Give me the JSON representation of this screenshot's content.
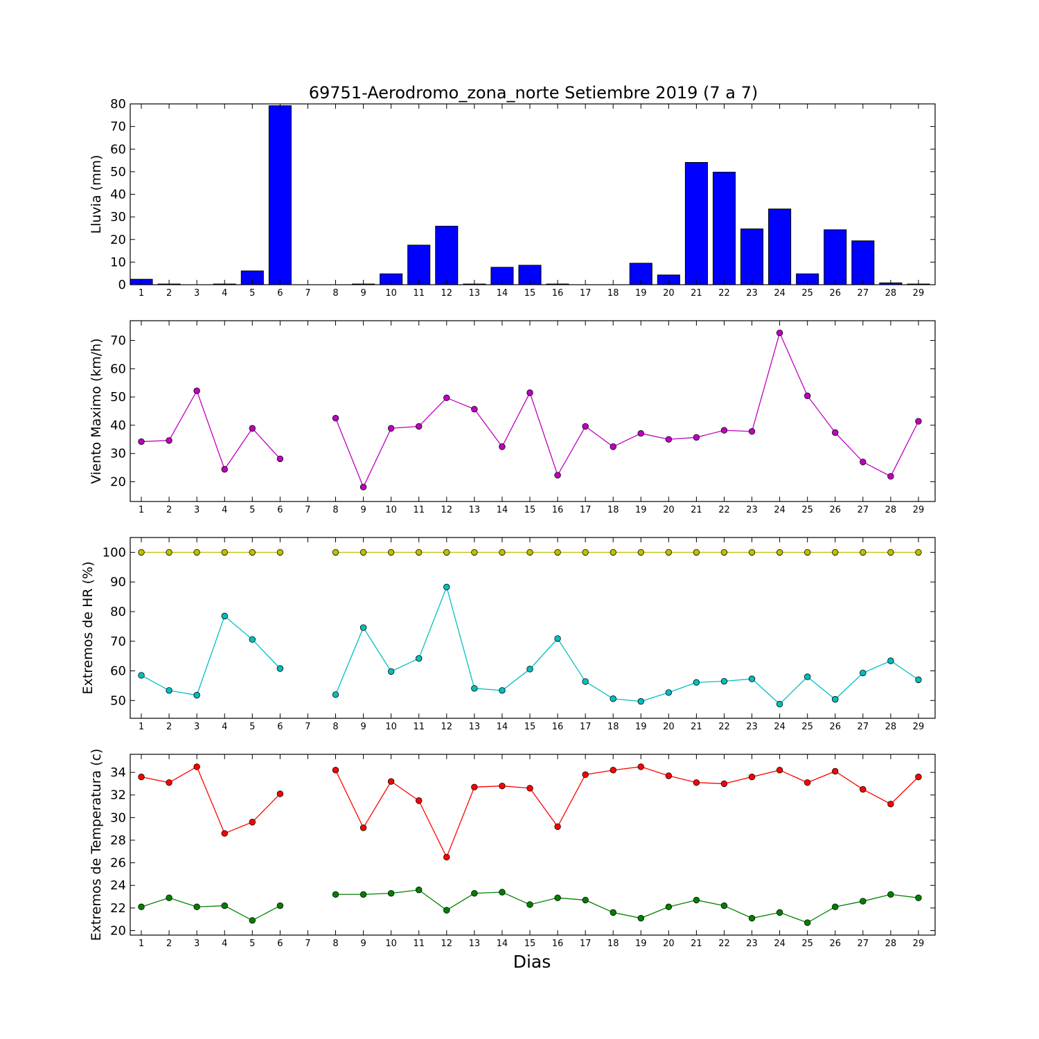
{
  "title": "69751-Aerodromo_zona_norte Setiembre 2019  (7 a 7)",
  "xlabel": "Dias",
  "chart_data": [
    {
      "type": "bar",
      "ylabel": "Lluvia (mm)",
      "ylim": [
        0,
        80
      ],
      "yticks": [
        0,
        10,
        20,
        30,
        40,
        50,
        60,
        70,
        80
      ],
      "x": [
        1,
        2,
        3,
        4,
        5,
        6,
        7,
        8,
        9,
        10,
        11,
        12,
        13,
        14,
        15,
        16,
        17,
        18,
        19,
        20,
        21,
        22,
        23,
        24,
        25,
        26,
        27,
        28,
        29
      ],
      "series": [
        {
          "color": "#0000ff",
          "values": [
            2.4,
            0.3,
            0,
            0.3,
            6.1,
            79.2,
            0,
            0,
            0.3,
            4.8,
            17.5,
            25.9,
            0.3,
            7.7,
            8.6,
            0.3,
            0,
            0,
            9.5,
            4.3,
            54.1,
            49.8,
            24.7,
            33.5,
            4.8,
            24.3,
            19.4,
            0.8,
            0.3
          ]
        }
      ]
    },
    {
      "type": "line",
      "ylabel": "Viento Maximo (km/h)",
      "ylim": [
        13,
        77
      ],
      "yticks": [
        20,
        30,
        40,
        50,
        60,
        70
      ],
      "x": [
        1,
        2,
        3,
        4,
        5,
        6,
        7,
        8,
        9,
        10,
        11,
        12,
        13,
        14,
        15,
        16,
        17,
        18,
        19,
        20,
        21,
        22,
        23,
        24,
        25,
        26,
        27,
        28,
        29
      ],
      "series": [
        {
          "color": "#bf00bf",
          "values": [
            34.2,
            34.6,
            52.2,
            24.4,
            38.9,
            28.1,
            null,
            42.5,
            18.1,
            38.9,
            39.6,
            49.7,
            45.7,
            32.4,
            51.5,
            22.3,
            39.6,
            32.4,
            37.1,
            35.0,
            35.7,
            38.2,
            37.8,
            72.7,
            50.4,
            37.4,
            27.0,
            21.9,
            41.4
          ]
        }
      ]
    },
    {
      "type": "line",
      "ylabel": "Extremos de HR (%)",
      "ylim": [
        44,
        105
      ],
      "yticks": [
        50,
        60,
        70,
        80,
        90,
        100
      ],
      "x": [
        1,
        2,
        3,
        4,
        5,
        6,
        7,
        8,
        9,
        10,
        11,
        12,
        13,
        14,
        15,
        16,
        17,
        18,
        19,
        20,
        21,
        22,
        23,
        24,
        25,
        26,
        27,
        28,
        29
      ],
      "series": [
        {
          "color": "#bfbf00",
          "values": [
            100,
            100,
            100,
            100,
            100,
            100,
            null,
            100,
            100,
            100,
            100,
            100,
            100,
            100,
            100,
            100,
            100,
            100,
            100,
            100,
            100,
            100,
            100,
            100,
            100,
            100,
            100,
            100,
            100
          ]
        },
        {
          "color": "#00bfbf",
          "values": [
            58.5,
            53.4,
            51.8,
            78.5,
            70.6,
            60.8,
            null,
            52.0,
            74.6,
            59.8,
            64.2,
            88.3,
            54.1,
            53.4,
            60.6,
            70.9,
            56.4,
            50.6,
            49.7,
            52.7,
            56.1,
            56.5,
            57.3,
            48.8,
            58.0,
            50.4,
            59.3,
            63.4,
            57.0
          ]
        }
      ]
    },
    {
      "type": "line",
      "ylabel": "Extremos de Temperatura (c)",
      "ylim": [
        19.6,
        35.6
      ],
      "yticks": [
        20,
        22,
        24,
        26,
        28,
        30,
        32,
        34
      ],
      "x": [
        1,
        2,
        3,
        4,
        5,
        6,
        7,
        8,
        9,
        10,
        11,
        12,
        13,
        14,
        15,
        16,
        17,
        18,
        19,
        20,
        21,
        22,
        23,
        24,
        25,
        26,
        27,
        28,
        29
      ],
      "series": [
        {
          "color": "#ff0000",
          "values": [
            33.6,
            33.1,
            34.5,
            28.6,
            29.6,
            32.1,
            null,
            34.2,
            29.1,
            33.2,
            31.5,
            26.5,
            32.7,
            32.8,
            32.6,
            29.2,
            33.8,
            34.2,
            34.5,
            33.7,
            33.1,
            33.0,
            33.6,
            34.2,
            33.1,
            34.1,
            32.5,
            31.2,
            33.6
          ]
        },
        {
          "color": "#008000",
          "values": [
            22.1,
            22.9,
            22.1,
            22.2,
            20.9,
            22.2,
            null,
            23.2,
            23.2,
            23.3,
            23.6,
            21.8,
            23.3,
            23.4,
            22.3,
            22.9,
            22.7,
            21.6,
            21.1,
            22.1,
            22.7,
            22.2,
            21.1,
            21.6,
            20.7,
            22.1,
            22.6,
            23.2,
            22.9
          ]
        }
      ]
    }
  ]
}
